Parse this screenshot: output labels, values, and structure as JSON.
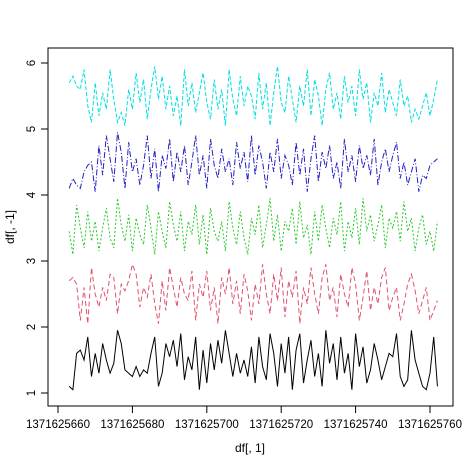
{
  "chart_data": {
    "type": "line",
    "title": "",
    "xlabel": "df[, 1]",
    "ylabel": "df[, -1]",
    "xlim": [
      1371625660,
      1371625760
    ],
    "ylim": [
      1,
      6
    ],
    "x_ticks": [
      "1371625660",
      "1371625680",
      "1371625700",
      "1371625720",
      "1371625740",
      "1371625760"
    ],
    "y_ticks": [
      "1",
      "2",
      "3",
      "4",
      "5",
      "6"
    ],
    "grid": false,
    "legend": "none",
    "x_start": 1371625663,
    "x_step": 1,
    "series": [
      {
        "color": "#000000",
        "dash": "none",
        "values": [
          1.1,
          1.05,
          1.6,
          1.65,
          1.5,
          1.85,
          1.25,
          1.6,
          1.3,
          1.75,
          1.5,
          1.3,
          1.45,
          1.95,
          1.75,
          1.35,
          1.3,
          1.25,
          1.4,
          1.25,
          1.35,
          1.3,
          1.6,
          1.85,
          1.1,
          1.3,
          1.75,
          1.55,
          1.8,
          1.4,
          1.9,
          1.2,
          1.55,
          1.35,
          1.85,
          1.05,
          1.65,
          1.15,
          1.75,
          1.35,
          1.8,
          1.45,
          1.95,
          1.6,
          1.25,
          1.6,
          1.3,
          1.5,
          1.25,
          1.7,
          1.15,
          1.85,
          1.4,
          1.2,
          1.9,
          1.6,
          1.1,
          1.75,
          1.3,
          1.85,
          1.05,
          1.65,
          1.9,
          1.15,
          1.5,
          1.8,
          1.25,
          1.6,
          1.1,
          1.95,
          1.45,
          1.75,
          1.2,
          1.85,
          1.3,
          1.6,
          1.05,
          1.9,
          1.4,
          1.7,
          1.15,
          1.35,
          1.75,
          1.5,
          1.2,
          1.4,
          1.6,
          1.55,
          1.9,
          1.25,
          1.1,
          1.2,
          1.95,
          1.5,
          1.3,
          1.1,
          1.05,
          1.3,
          1.85,
          1.1
        ]
      },
      {
        "color": "#df536b",
        "dash": "5 3",
        "values": [
          2.7,
          2.75,
          2.65,
          2.1,
          2.6,
          2.05,
          2.9,
          2.5,
          2.3,
          2.6,
          2.4,
          2.8,
          2.75,
          2.2,
          2.65,
          2.55,
          2.7,
          2.95,
          2.8,
          2.3,
          2.6,
          2.45,
          2.8,
          2.35,
          2.05,
          2.7,
          2.25,
          2.9,
          2.6,
          2.3,
          2.75,
          2.5,
          2.4,
          2.85,
          2.1,
          2.65,
          2.45,
          2.85,
          2.25,
          2.6,
          2.05,
          2.75,
          2.5,
          2.9,
          2.35,
          2.7,
          2.2,
          2.8,
          2.55,
          2.1,
          2.65,
          2.35,
          2.95,
          2.5,
          2.2,
          2.8,
          2.4,
          2.9,
          2.15,
          2.7,
          2.45,
          2.85,
          2.05,
          2.6,
          2.35,
          2.9,
          2.5,
          2.2,
          2.75,
          2.95,
          2.4,
          2.6,
          2.15,
          2.8,
          2.5,
          2.3,
          2.9,
          2.65,
          2.1,
          2.45,
          2.85,
          2.25,
          2.6,
          2.35,
          2.75,
          2.9,
          2.25,
          2.45,
          2.6,
          2.1,
          2.35,
          2.65,
          2.8,
          2.55,
          2.2,
          2.4,
          2.6,
          2.1,
          2.25,
          2.4
        ]
      },
      {
        "color": "#28c828",
        "dash": "2 2",
        "values": [
          3.45,
          3.1,
          3.85,
          3.5,
          3.2,
          3.75,
          3.3,
          3.6,
          3.15,
          3.5,
          3.8,
          3.35,
          3.2,
          3.95,
          3.55,
          3.3,
          3.7,
          3.15,
          3.65,
          3.4,
          3.25,
          3.85,
          3.5,
          3.1,
          3.75,
          3.45,
          3.2,
          3.9,
          3.55,
          3.3,
          3.75,
          3.15,
          3.6,
          3.4,
          3.85,
          3.25,
          3.7,
          3.1,
          3.8,
          3.45,
          3.3,
          3.6,
          3.15,
          3.9,
          3.5,
          3.25,
          3.75,
          3.35,
          3.1,
          3.65,
          3.4,
          3.85,
          3.2,
          3.55,
          3.95,
          3.3,
          3.7,
          3.15,
          3.6,
          3.45,
          3.8,
          3.25,
          3.9,
          3.35,
          3.55,
          3.1,
          3.75,
          3.3,
          3.85,
          3.5,
          3.2,
          3.65,
          3.4,
          3.9,
          3.15,
          3.6,
          3.35,
          3.8,
          3.25,
          3.95,
          3.45,
          3.7,
          3.3,
          3.55,
          3.85,
          3.2,
          3.65,
          3.5,
          3.75,
          3.3,
          3.9,
          3.45,
          3.65,
          3.15,
          3.5,
          3.7,
          3.25,
          3.45,
          3.15,
          3.6
        ]
      },
      {
        "color": "#2020c0",
        "dash": "6 2 1 2",
        "values": [
          4.1,
          4.25,
          4.15,
          4.1,
          4.35,
          4.45,
          4.5,
          4.05,
          4.75,
          4.3,
          4.9,
          4.55,
          4.2,
          4.95,
          4.65,
          4.1,
          4.8,
          4.35,
          4.55,
          4.15,
          4.45,
          4.9,
          4.25,
          4.7,
          4.05,
          4.6,
          4.4,
          4.85,
          4.2,
          4.65,
          4.35,
          4.75,
          4.15,
          4.5,
          4.9,
          4.3,
          4.6,
          4.1,
          4.85,
          4.45,
          4.25,
          4.7,
          4.35,
          4.55,
          4.15,
          4.8,
          4.4,
          4.65,
          4.2,
          4.9,
          4.3,
          4.75,
          4.5,
          4.1,
          4.65,
          4.35,
          4.85,
          4.25,
          4.6,
          4.45,
          4.15,
          4.8,
          4.3,
          4.7,
          4.05,
          4.55,
          4.9,
          4.2,
          4.65,
          4.4,
          4.75,
          4.25,
          4.5,
          4.1,
          4.85,
          4.35,
          4.6,
          4.2,
          4.75,
          4.4,
          4.6,
          4.3,
          4.85,
          4.15,
          4.5,
          4.7,
          4.35,
          4.6,
          4.8,
          4.25,
          4.5,
          4.15,
          4.35,
          4.55,
          4.05,
          4.3,
          4.25,
          4.45,
          4.5,
          4.55
        ]
      },
      {
        "color": "#00e0e0",
        "dash": "4 2",
        "values": [
          5.7,
          5.8,
          5.65,
          5.6,
          5.9,
          5.35,
          5.1,
          5.7,
          5.2,
          5.55,
          5.3,
          5.9,
          5.45,
          5.1,
          5.25,
          5.05,
          5.6,
          5.3,
          5.85,
          5.4,
          5.75,
          5.15,
          5.6,
          5.95,
          5.45,
          5.8,
          5.3,
          5.65,
          5.2,
          5.5,
          5.05,
          5.9,
          5.35,
          5.7,
          5.25,
          5.55,
          5.85,
          5.4,
          5.15,
          5.75,
          5.3,
          5.6,
          5.05,
          5.9,
          5.45,
          5.2,
          5.8,
          5.35,
          5.65,
          5.5,
          5.15,
          5.85,
          5.3,
          5.7,
          5.05,
          5.55,
          5.95,
          5.4,
          5.25,
          5.8,
          5.45,
          5.1,
          5.65,
          5.35,
          5.9,
          5.2,
          5.75,
          5.5,
          5.05,
          5.6,
          5.85,
          5.3,
          5.55,
          5.15,
          5.8,
          5.4,
          5.65,
          5.2,
          5.9,
          5.45,
          5.7,
          5.1,
          5.55,
          5.35,
          5.85,
          5.25,
          5.6,
          5.4,
          5.2,
          5.75,
          5.35,
          5.5,
          5.1,
          5.3,
          5.15,
          5.35,
          5.55,
          5.2,
          5.45,
          5.75
        ]
      }
    ]
  }
}
